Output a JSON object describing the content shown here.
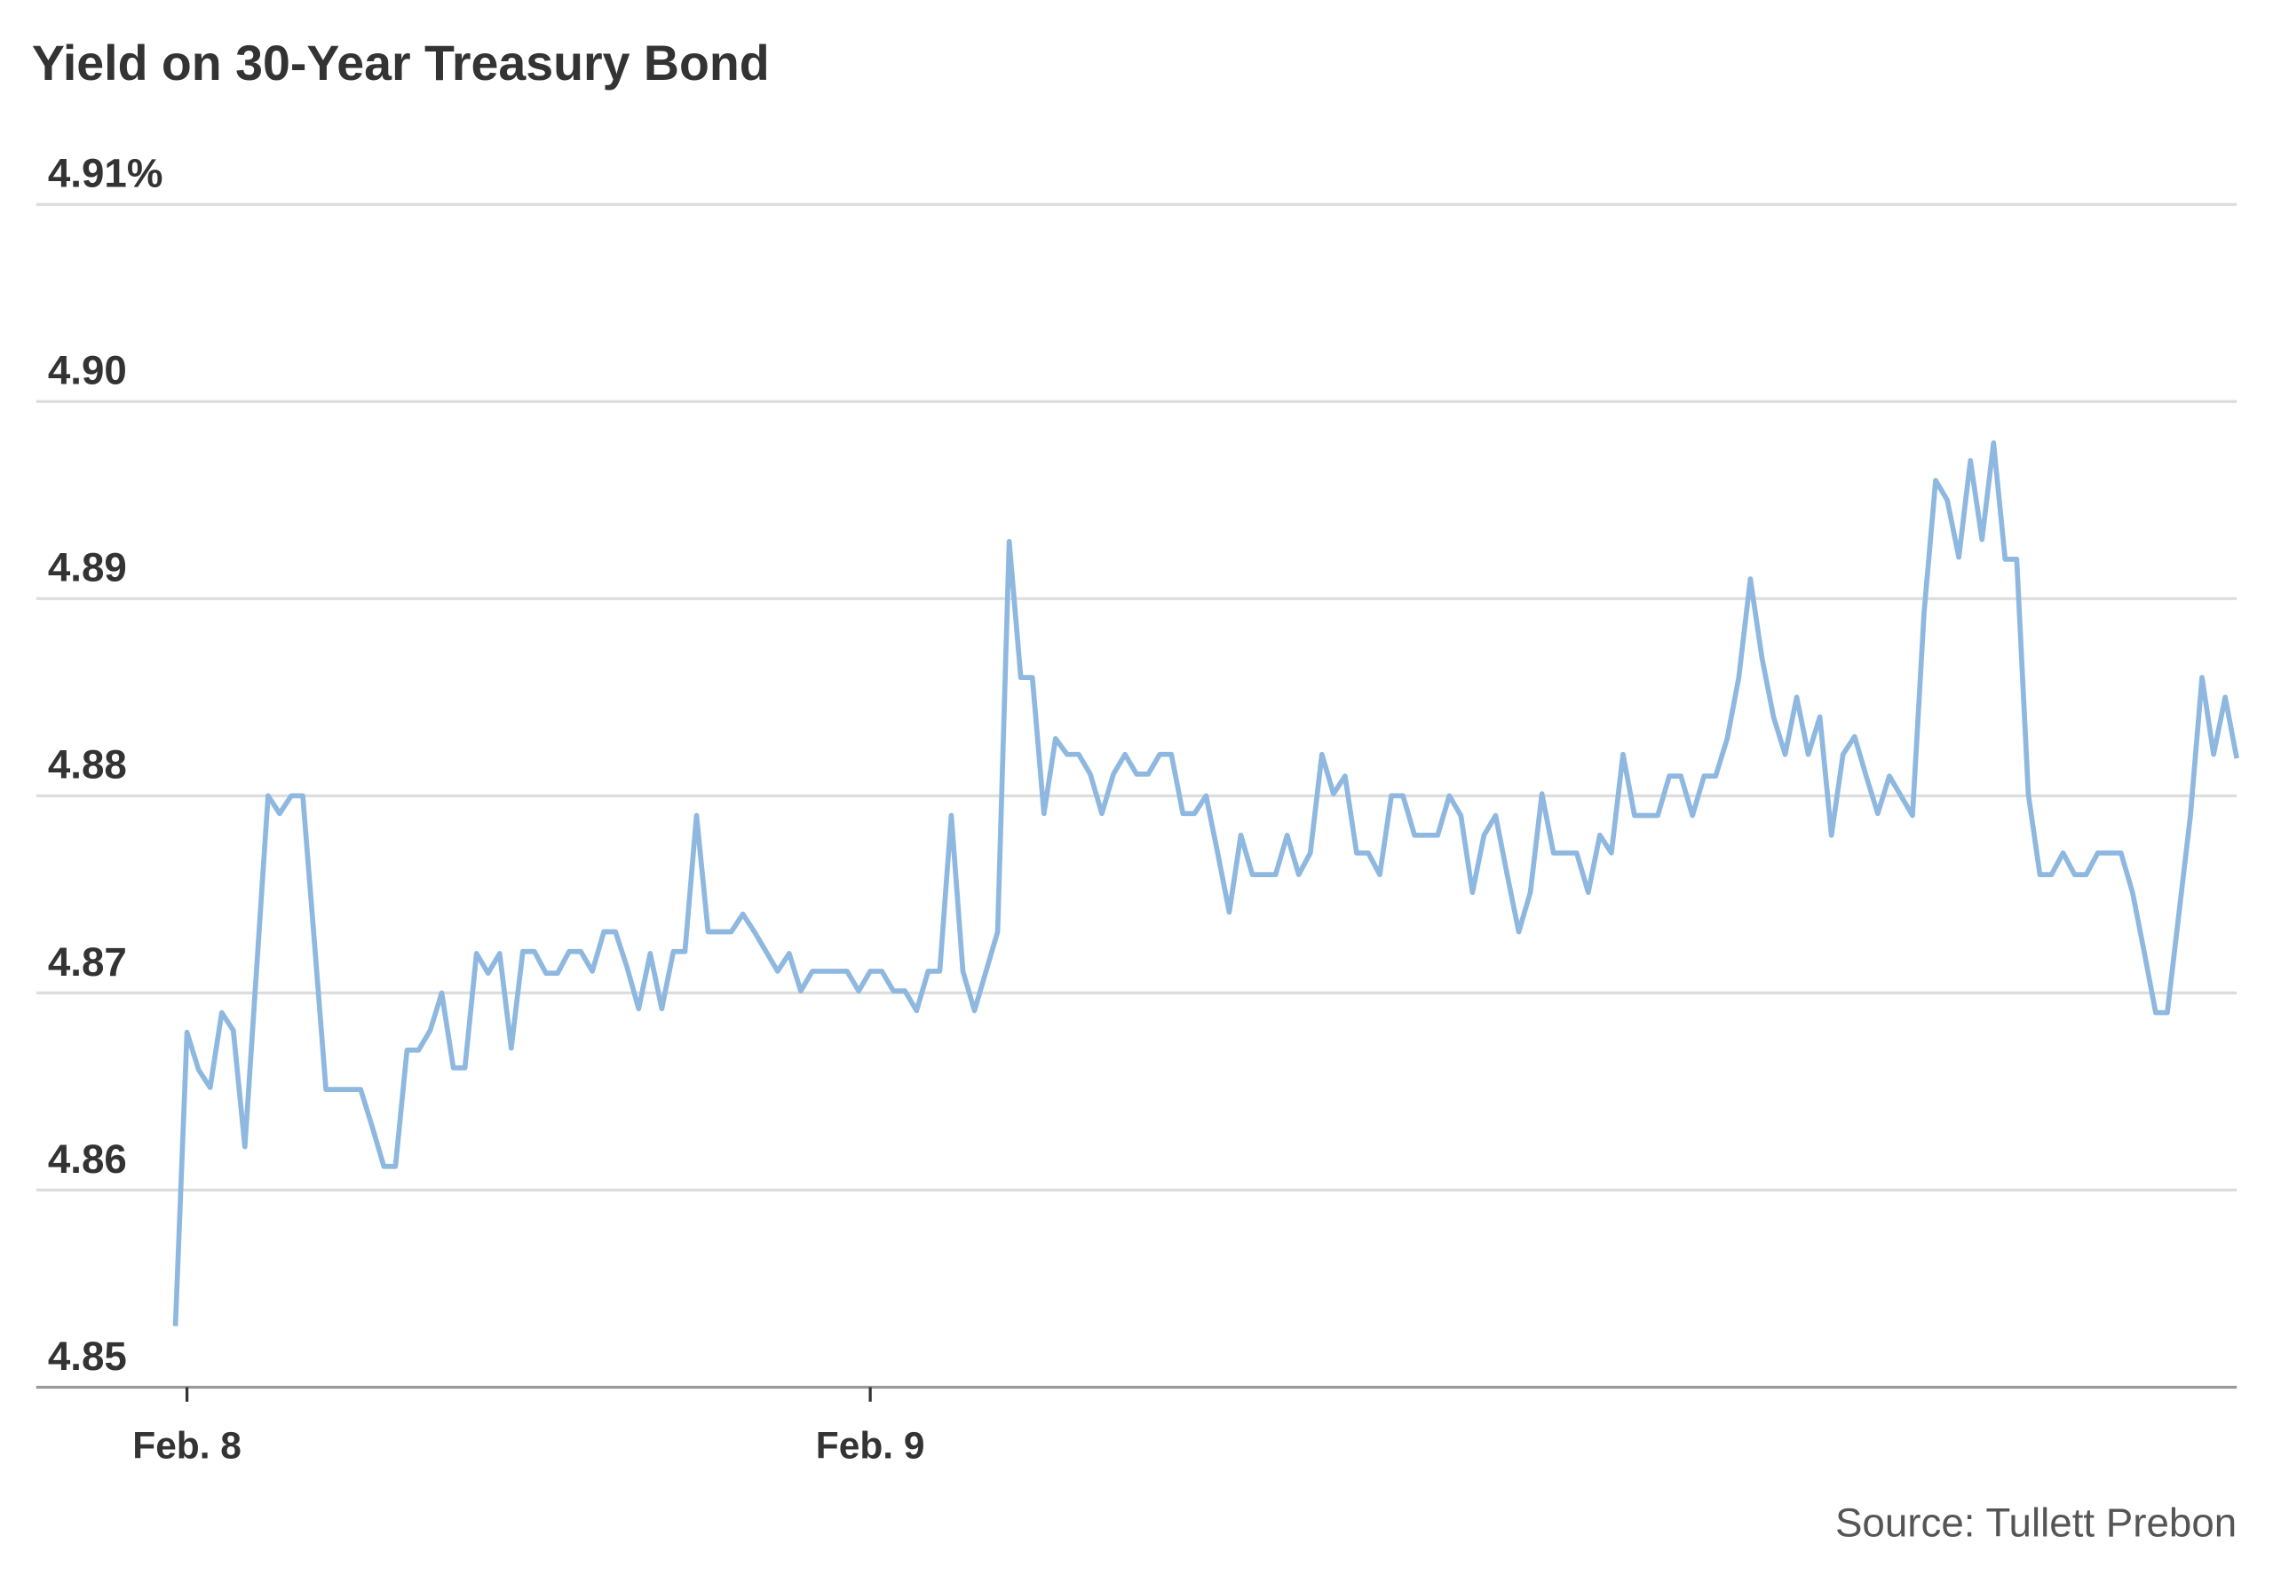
{
  "chart_data": {
    "type": "line",
    "title": "Yield on 30-Year Treasury Bond",
    "source": "Source: Tullett Prebon",
    "categories": [
      null,
      "Feb. 8",
      null,
      null,
      null,
      null,
      null,
      null,
      null,
      null,
      null,
      null,
      null,
      null,
      null,
      null,
      null,
      null,
      null,
      null,
      null,
      null,
      null,
      null,
      null,
      null,
      null,
      null,
      null,
      null,
      null,
      null,
      null,
      null,
      null,
      null,
      null,
      null,
      null,
      null,
      null,
      null,
      null,
      null,
      null,
      null,
      null,
      null,
      null,
      null,
      null,
      null,
      null,
      null,
      null,
      null,
      null,
      null,
      null,
      null,
      "Feb. 9",
      null,
      null,
      null,
      null,
      null,
      null,
      null,
      null,
      null,
      null,
      null,
      null,
      null,
      null,
      null,
      null,
      null,
      null,
      null,
      null,
      null,
      null,
      null,
      null,
      null,
      null,
      null,
      null,
      null,
      null,
      null,
      null,
      null,
      null,
      null,
      null,
      null,
      null,
      null,
      null,
      null,
      null,
      null,
      null,
      null,
      null,
      null,
      null,
      null,
      null,
      null,
      null,
      null,
      null,
      null,
      null,
      null,
      null,
      null,
      null,
      null,
      null,
      null,
      null,
      null,
      null,
      null,
      null,
      null,
      null,
      null,
      null,
      null,
      null,
      null,
      null,
      null,
      null,
      null,
      null,
      null,
      null,
      null,
      null,
      null,
      null,
      null,
      null,
      null,
      null,
      null,
      null,
      null,
      null,
      null,
      null,
      null,
      null,
      null,
      null,
      null,
      null,
      null,
      null,
      null,
      null,
      null,
      null,
      null,
      null,
      null,
      null,
      null,
      null,
      null,
      null,
      null,
      null
    ],
    "series": [
      {
        "name": "Yield",
        "color": "#8fb8e0",
        "values": [
          4.8531,
          4.868,
          4.8661,
          4.8652,
          4.869,
          4.8681,
          4.8622,
          4.8711,
          4.88,
          4.8791,
          4.88,
          4.88,
          4.8726,
          4.8651,
          4.8651,
          4.8651,
          4.8651,
          4.8632,
          4.8612,
          4.8612,
          4.8671,
          4.8671,
          4.8681,
          4.87,
          4.8662,
          4.8662,
          4.872,
          4.871,
          4.872,
          4.8672,
          4.8721,
          4.8721,
          4.871,
          4.871,
          4.8721,
          4.8721,
          4.8711,
          4.8731,
          4.8731,
          4.8713,
          4.8692,
          4.872,
          4.8692,
          4.8721,
          4.8721,
          4.879,
          4.8731,
          4.8731,
          4.8731,
          4.874,
          4.8731,
          4.8721,
          4.8711,
          4.872,
          4.8701,
          4.8711,
          4.8711,
          4.8711,
          4.8711,
          4.8701,
          4.8711,
          4.8711,
          4.8701,
          4.8701,
          4.8691,
          4.8711,
          4.8711,
          4.879,
          4.8711,
          4.8691,
          4.8711,
          4.8731,
          4.8929,
          4.886,
          4.886,
          4.8791,
          4.8829,
          4.8821,
          4.8821,
          4.8811,
          4.8791,
          4.8811,
          4.8821,
          4.8811,
          4.8811,
          4.8821,
          4.8821,
          4.8791,
          4.8791,
          4.88,
          4.8771,
          4.8741,
          4.878,
          4.876,
          4.876,
          4.876,
          4.878,
          4.876,
          4.8771,
          4.8821,
          4.8801,
          4.881,
          4.8771,
          4.8771,
          4.876,
          4.88,
          4.88,
          4.878,
          4.878,
          4.878,
          4.88,
          4.879,
          4.8751,
          4.878,
          4.879,
          4.876,
          4.8731,
          4.8751,
          4.8801,
          4.8771,
          4.8771,
          4.8771,
          4.8751,
          4.878,
          4.8771,
          4.8821,
          4.879,
          4.879,
          4.879,
          4.881,
          4.881,
          4.879,
          4.881,
          4.881,
          4.8829,
          4.886,
          4.891,
          4.887,
          4.884,
          4.8821,
          4.885,
          4.8821,
          4.884,
          4.878,
          4.8821,
          4.883,
          4.881,
          4.8791,
          4.881,
          4.88,
          4.879,
          4.8893,
          4.896,
          4.895,
          4.8921,
          4.897,
          4.893,
          4.8979,
          4.892,
          4.892,
          4.8801,
          4.876,
          4.876,
          4.8771,
          4.876,
          4.876,
          4.8771,
          4.8771,
          4.8771,
          4.8751,
          4.8721,
          4.869,
          4.869,
          4.874,
          4.879,
          4.886,
          4.8821,
          4.885,
          4.8819
        ]
      }
    ],
    "ylim": [
      4.85,
      4.91
    ],
    "yticks": [
      4.85,
      4.86,
      4.87,
      4.88,
      4.89,
      {
        "value": 4.9,
        "label": "4.90"
      },
      {
        "value": 4.91,
        "label": "4.91%"
      }
    ],
    "grid": true
  }
}
